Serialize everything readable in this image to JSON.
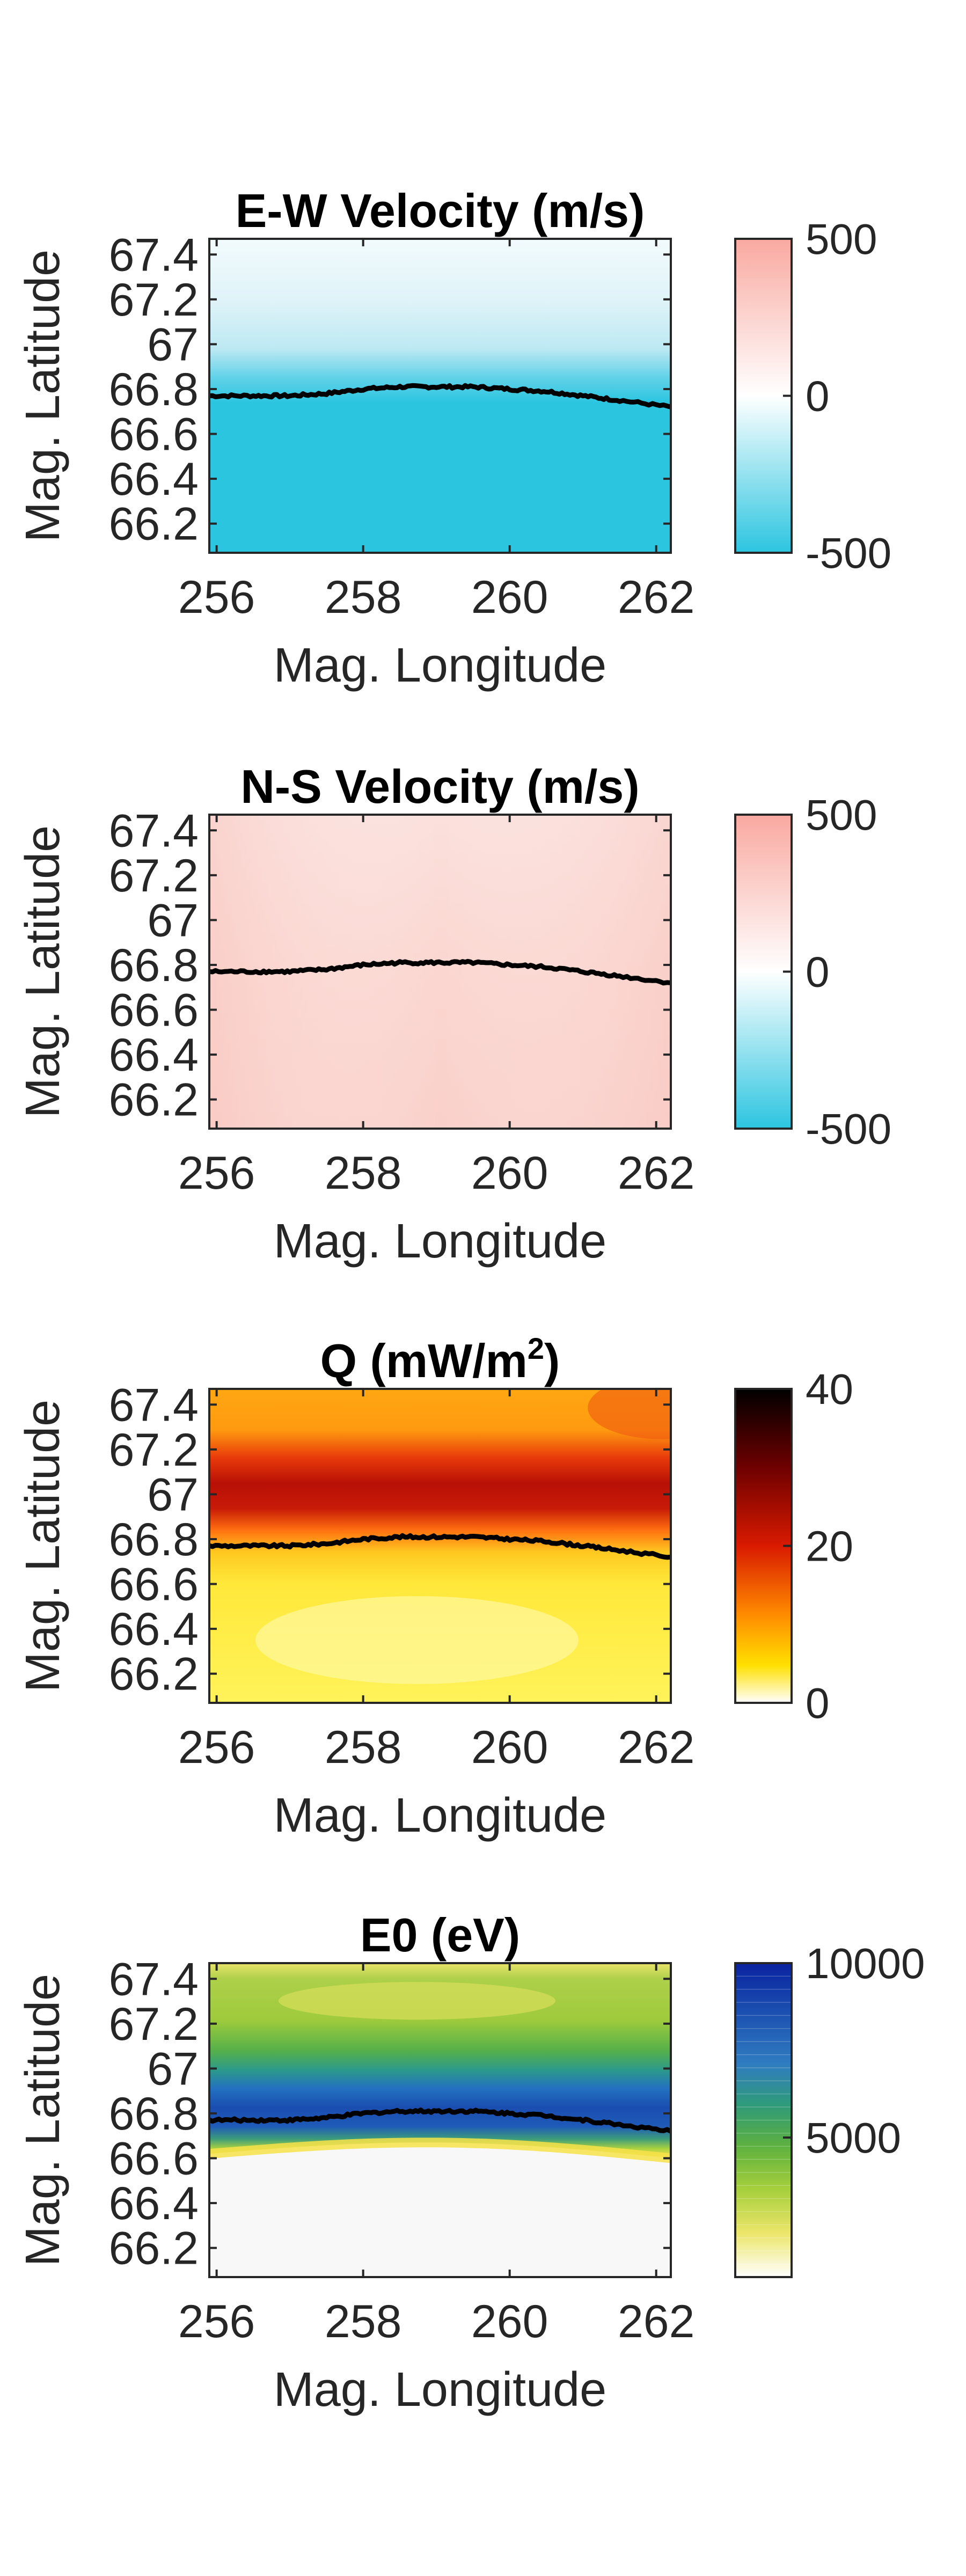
{
  "chart_data": [
    {
      "type": "heatmap",
      "title": "E-W Velocity (m/s)",
      "xlabel": "Mag. Longitude",
      "ylabel": "Mag. Latitude",
      "xlim": [
        255.9,
        262.2
      ],
      "ylim": [
        66.07,
        67.47
      ],
      "xticks": [
        "256",
        "258",
        "260",
        "262"
      ],
      "yticks": [
        "66.2",
        "66.4",
        "66.6",
        "66.8",
        "67",
        "67.2",
        "67.4"
      ],
      "colorbar": {
        "ticks": [
          "-500",
          "0",
          "500"
        ],
        "range": [
          -500,
          500
        ],
        "colormap": "diverging-cyan-white-pink"
      },
      "field": {
        "description_values": "about -100 near top, about -500 below 66.9"
      },
      "boundary_line": {
        "x": [
          255.9,
          256.5,
          257.0,
          257.5,
          258.0,
          258.5,
          259.0,
          259.5,
          260.0,
          260.5,
          261.0,
          261.5,
          262.2
        ],
        "y": [
          66.77,
          66.77,
          66.77,
          66.78,
          66.8,
          66.81,
          66.81,
          66.81,
          66.8,
          66.79,
          66.77,
          66.75,
          66.72
        ]
      }
    },
    {
      "type": "heatmap",
      "title": "N-S Velocity (m/s)",
      "xlabel": "Mag. Longitude",
      "ylabel": "Mag. Latitude",
      "xlim": [
        255.9,
        262.2
      ],
      "ylim": [
        66.07,
        67.47
      ],
      "xticks": [
        "256",
        "258",
        "260",
        "262"
      ],
      "yticks": [
        "66.2",
        "66.4",
        "66.6",
        "66.8",
        "67",
        "67.2",
        "67.4"
      ],
      "colorbar": {
        "ticks": [
          "-500",
          "0",
          "500"
        ],
        "range": [
          -500,
          500
        ],
        "colormap": "diverging-cyan-white-pink"
      },
      "boundary_line": {
        "x": [
          255.9,
          256.5,
          257.0,
          257.5,
          258.0,
          258.5,
          259.0,
          259.5,
          260.0,
          260.5,
          261.0,
          261.5,
          262.2
        ],
        "y": [
          66.77,
          66.77,
          66.77,
          66.78,
          66.8,
          66.81,
          66.81,
          66.81,
          66.8,
          66.79,
          66.77,
          66.75,
          66.72
        ]
      }
    },
    {
      "type": "heatmap",
      "title_main": "Q (mW/m",
      "title_sup": "2",
      "title_end": ")",
      "xlabel": "Mag. Longitude",
      "ylabel": "Mag. Latitude",
      "xlim": [
        255.9,
        262.2
      ],
      "ylim": [
        66.07,
        67.47
      ],
      "xticks": [
        "256",
        "258",
        "260",
        "262"
      ],
      "yticks": [
        "66.2",
        "66.4",
        "66.6",
        "66.8",
        "67",
        "67.2",
        "67.4"
      ],
      "colorbar": {
        "ticks": [
          "0",
          "20",
          "40"
        ],
        "range": [
          0,
          40
        ],
        "colormap": "hot-reversed"
      },
      "boundary_line": {
        "x": [
          255.9,
          256.5,
          257.0,
          257.5,
          258.0,
          258.5,
          259.0,
          259.5,
          260.0,
          260.5,
          261.0,
          261.5,
          262.2
        ],
        "y": [
          66.77,
          66.77,
          66.77,
          66.78,
          66.8,
          66.81,
          66.81,
          66.81,
          66.8,
          66.79,
          66.77,
          66.75,
          66.72
        ]
      }
    },
    {
      "type": "heatmap",
      "title": "E0 (eV)",
      "xlabel": "Mag. Longitude",
      "ylabel": "Mag. Latitude",
      "xlim": [
        255.9,
        262.2
      ],
      "ylim": [
        66.07,
        67.47
      ],
      "xticks": [
        "256",
        "258",
        "260",
        "262"
      ],
      "yticks": [
        "66.2",
        "66.4",
        "66.6",
        "66.8",
        "67",
        "67.2",
        "67.4"
      ],
      "colorbar": {
        "ticks": [
          "5000",
          "10000"
        ],
        "range": [
          1000,
          10000
        ],
        "colormap": "white-yellow-green-blue"
      },
      "boundary_line": {
        "x": [
          255.9,
          256.5,
          257.0,
          257.5,
          258.0,
          258.5,
          259.0,
          259.5,
          260.0,
          260.5,
          261.0,
          261.5,
          262.2
        ],
        "y": [
          66.77,
          66.77,
          66.77,
          66.78,
          66.8,
          66.81,
          66.81,
          66.81,
          66.8,
          66.79,
          66.77,
          66.75,
          66.72
        ]
      }
    }
  ],
  "colors": {
    "cyan": "#2cc5e0",
    "pink": "#f9a9a0",
    "frame": "#262626",
    "boundary": "#000000"
  }
}
